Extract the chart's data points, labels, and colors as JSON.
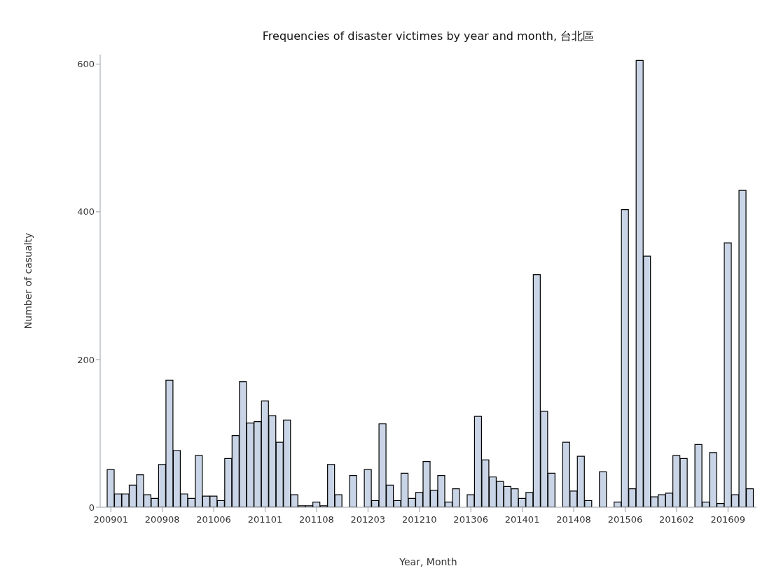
{
  "chart_data": {
    "type": "bar",
    "title": "Frequencies of disaster victimes by year and month, 台北區",
    "xlabel": "Year, Month",
    "ylabel": "Number of casualty",
    "categories": [
      "200901",
      null,
      null,
      null,
      null,
      null,
      null,
      "200908",
      null,
      null,
      null,
      null,
      null,
      null,
      "201006",
      null,
      null,
      null,
      null,
      null,
      null,
      "201101",
      null,
      null,
      null,
      null,
      null,
      null,
      "201108",
      null,
      null,
      null,
      null,
      null,
      null,
      "201203",
      null,
      null,
      null,
      null,
      null,
      null,
      "201210",
      null,
      null,
      null,
      null,
      null,
      null,
      "201306",
      null,
      null,
      null,
      null,
      null,
      null,
      "201401",
      null,
      null,
      null,
      null,
      null,
      null,
      "201408",
      null,
      null,
      null,
      null,
      null,
      null,
      "201506",
      null,
      null,
      null,
      null,
      null,
      null,
      "201602",
      null,
      null,
      null,
      null,
      null,
      null,
      "201609",
      null,
      null,
      null
    ],
    "values": [
      51,
      18,
      18,
      30,
      44,
      17,
      12,
      58,
      172,
      77,
      18,
      12,
      70,
      15,
      15,
      9,
      66,
      97,
      170,
      114,
      116,
      144,
      124,
      88,
      118,
      17,
      2,
      2,
      7,
      2,
      58,
      17,
      null,
      43,
      null,
      51,
      9,
      113,
      30,
      9,
      46,
      12,
      20,
      62,
      23,
      43,
      7,
      25,
      null,
      17,
      123,
      64,
      41,
      35,
      28,
      25,
      12,
      20,
      315,
      130,
      46,
      null,
      88,
      22,
      69,
      9,
      null,
      48,
      null,
      7,
      403,
      25,
      605,
      340,
      14,
      17,
      19,
      70,
      66,
      null,
      85,
      7,
      74,
      5,
      358,
      17,
      429,
      25
    ],
    "color": "#c9d5e6",
    "ylim": [
      0,
      613
    ],
    "yticks": [
      0,
      200,
      400,
      600
    ]
  }
}
